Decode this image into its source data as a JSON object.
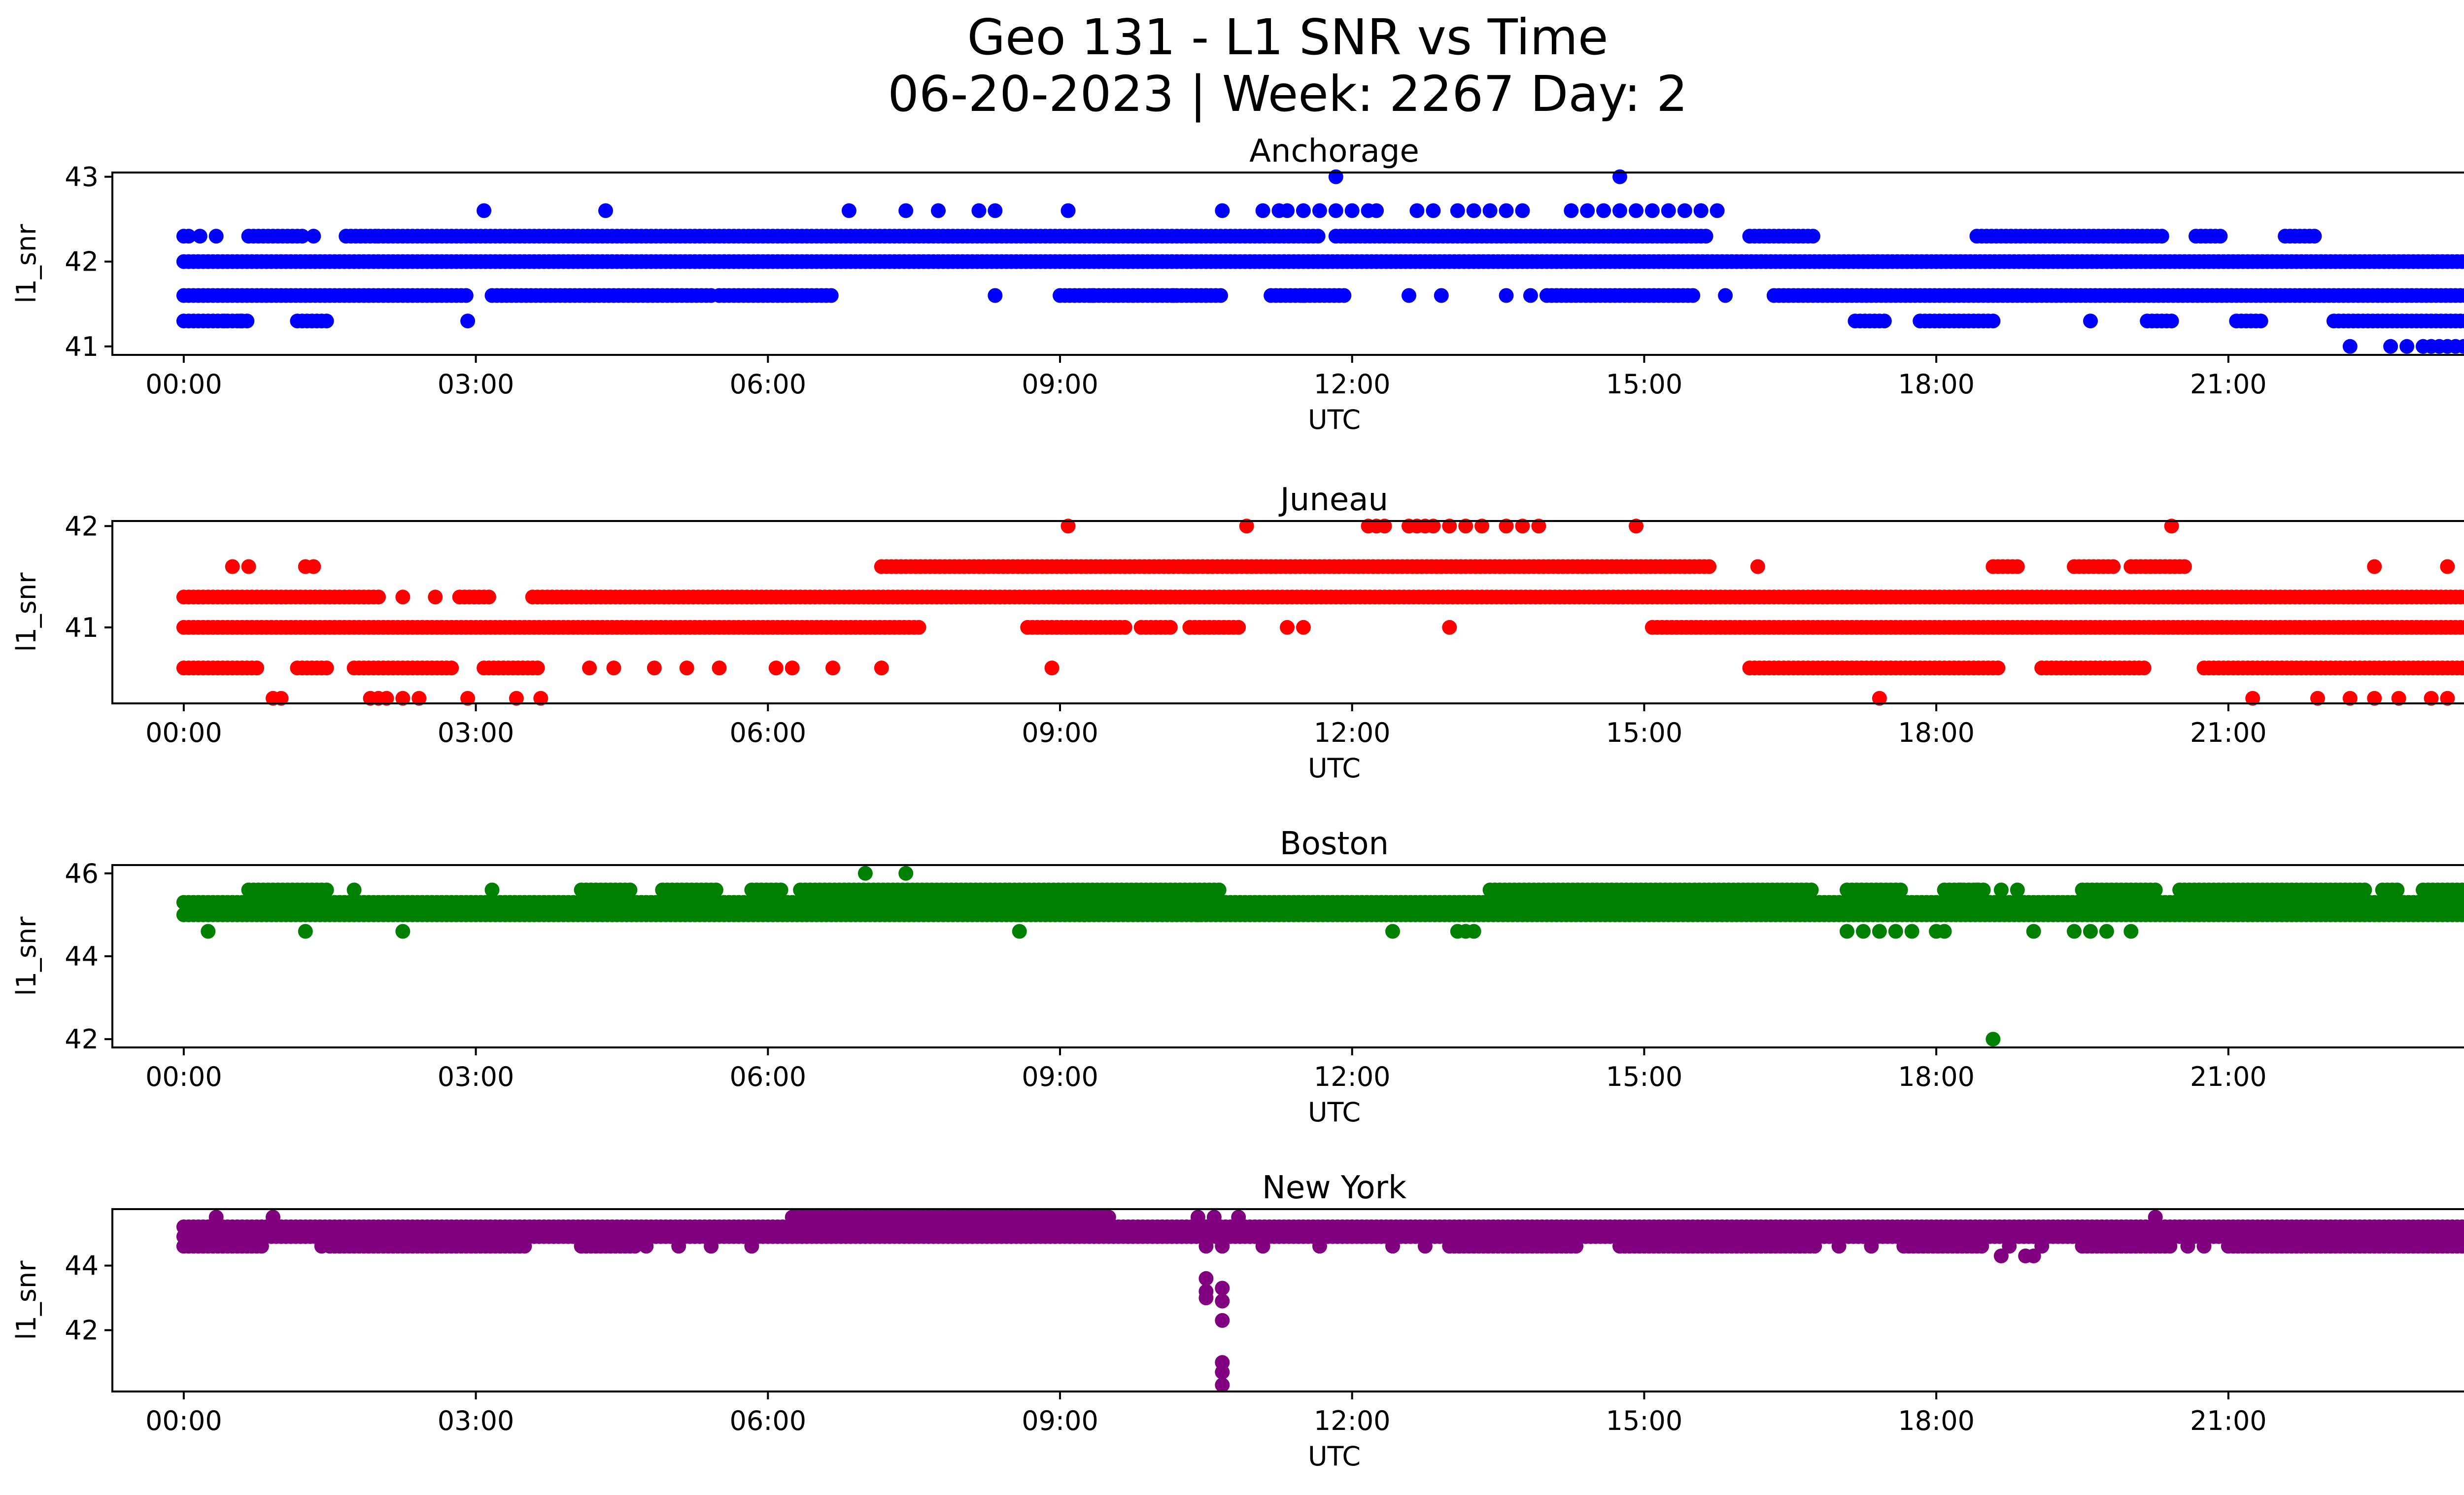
{
  "figure": {
    "title_line1": "Geo 131 - L1 SNR vs Time",
    "title_line2": "06-20-2023 | Week: 2267 Day: 2"
  },
  "chart_data": [
    {
      "type": "scatter",
      "title": "Anchorage",
      "xlabel": "UTC",
      "ylabel": "l1_snr",
      "color": "#0000ff",
      "xlim": [
        "23:16",
        "24:22"
      ],
      "ylim": [
        40.9,
        43.05
      ],
      "x_ticks": [
        "00:00",
        "03:00",
        "06:00",
        "09:00",
        "12:00",
        "15:00",
        "18:00",
        "21:00",
        "00:00"
      ],
      "y_ticks": [
        41,
        42,
        43
      ],
      "bands": [
        {
          "y": 41.6,
          "segments": [
            [
              "00:00",
              "02:55"
            ],
            [
              "03:10",
              "05:25"
            ],
            [
              "05:30",
              "06:40"
            ],
            [
              "09:00",
              "10:40"
            ],
            [
              "11:10",
              "11:55"
            ],
            [
              "14:00",
              "15:30"
            ],
            [
              "16:20",
              "24:00"
            ]
          ]
        },
        {
          "y": 42.0,
          "segments": [
            [
              "00:00",
              "24:00"
            ]
          ]
        },
        {
          "y": 42.3,
          "segments": [
            [
              "00:00",
              "00:05"
            ],
            [
              "00:40",
              "01:15"
            ],
            [
              "01:40",
              "02:00"
            ],
            [
              "02:00",
              "11:40"
            ],
            [
              "11:50",
              "15:40"
            ],
            [
              "16:05",
              "16:45"
            ],
            [
              "18:25",
              "20:20"
            ],
            [
              "20:40",
              "20:55"
            ],
            [
              "21:35",
              "21:55"
            ]
          ]
        },
        {
          "y": 41.3,
          "segments": [
            [
              "00:00",
              "00:40"
            ],
            [
              "01:10",
              "01:30"
            ],
            [
              "17:10",
              "17:30"
            ],
            [
              "17:50",
              "18:35"
            ],
            [
              "20:10",
              "20:25"
            ],
            [
              "21:05",
              "21:20"
            ],
            [
              "22:05",
              "24:00"
            ]
          ]
        }
      ],
      "points": [
        [
          "00:10",
          42.3
        ],
        [
          "00:20",
          42.3
        ],
        [
          "01:20",
          42.3
        ],
        [
          "02:55",
          41.3
        ],
        [
          "03:05",
          42.6
        ],
        [
          "04:20",
          42.6
        ],
        [
          "06:50",
          42.6
        ],
        [
          "07:25",
          42.6
        ],
        [
          "07:45",
          42.6
        ],
        [
          "08:10",
          42.6
        ],
        [
          "08:20",
          42.6
        ],
        [
          "09:05",
          42.6
        ],
        [
          "10:40",
          42.6
        ],
        [
          "11:05",
          42.6
        ],
        [
          "11:15",
          42.6
        ],
        [
          "11:20",
          42.6
        ],
        [
          "11:30",
          42.6
        ],
        [
          "11:40",
          42.6
        ],
        [
          "11:50",
          42.6
        ],
        [
          "12:00",
          42.6
        ],
        [
          "12:10",
          42.6
        ],
        [
          "12:15",
          42.6
        ],
        [
          "12:40",
          42.6
        ],
        [
          "12:50",
          42.6
        ],
        [
          "13:05",
          42.6
        ],
        [
          "13:15",
          42.6
        ],
        [
          "13:25",
          42.6
        ],
        [
          "13:35",
          42.6
        ],
        [
          "13:45",
          42.6
        ],
        [
          "14:15",
          42.6
        ],
        [
          "14:25",
          42.6
        ],
        [
          "14:35",
          42.6
        ],
        [
          "14:45",
          42.6
        ],
        [
          "14:55",
          42.6
        ],
        [
          "15:05",
          42.6
        ],
        [
          "15:15",
          42.6
        ],
        [
          "15:25",
          42.6
        ],
        [
          "15:35",
          42.6
        ],
        [
          "15:45",
          42.6
        ],
        [
          "11:50",
          43.0
        ],
        [
          "14:45",
          43.0
        ],
        [
          "08:20",
          41.6
        ],
        [
          "09:20",
          41.6
        ],
        [
          "09:45",
          41.6
        ],
        [
          "10:10",
          41.6
        ],
        [
          "10:30",
          41.6
        ],
        [
          "11:30",
          41.6
        ],
        [
          "12:35",
          41.6
        ],
        [
          "12:55",
          41.6
        ],
        [
          "13:35",
          41.6
        ],
        [
          "13:50",
          41.6
        ],
        [
          "15:50",
          41.6
        ],
        [
          "19:35",
          41.3
        ],
        [
          "23:30",
          42.3
        ],
        [
          "00:25",
          41.3
        ],
        [
          "00:35",
          41.3
        ],
        [
          "22:15",
          41.0
        ],
        [
          "22:40",
          41.0
        ],
        [
          "22:50",
          41.0
        ],
        [
          "23:00",
          41.0
        ],
        [
          "23:05",
          41.0
        ],
        [
          "23:10",
          41.0
        ],
        [
          "23:15",
          41.0
        ],
        [
          "23:20",
          41.0
        ],
        [
          "23:25",
          41.0
        ],
        [
          "24:00",
          41.0
        ],
        [
          "24:00",
          42.0
        ]
      ]
    },
    {
      "type": "scatter",
      "title": "Juneau",
      "xlabel": "UTC",
      "ylabel": "l1_snr",
      "color": "#ff0000",
      "xlim": [
        "23:16",
        "24:22"
      ],
      "ylim": [
        40.25,
        42.05
      ],
      "x_ticks": [
        "00:00",
        "03:00",
        "06:00",
        "09:00",
        "12:00",
        "15:00",
        "18:00",
        "21:00",
        "00:00"
      ],
      "y_ticks": [
        41,
        42
      ],
      "bands": [
        {
          "y": 41.0,
          "segments": [
            [
              "00:00",
              "07:35"
            ],
            [
              "08:40",
              "09:40"
            ],
            [
              "09:50",
              "10:10"
            ],
            [
              "10:20",
              "10:50"
            ],
            [
              "15:05",
              "24:00"
            ]
          ]
        },
        {
          "y": 41.3,
          "segments": [
            [
              "00:00",
              "02:00"
            ],
            [
              "02:50",
              "03:10"
            ],
            [
              "03:35",
              "24:00"
            ]
          ]
        },
        {
          "y": 40.6,
          "segments": [
            [
              "00:00",
              "00:45"
            ],
            [
              "01:10",
              "01:30"
            ],
            [
              "01:45",
              "02:45"
            ],
            [
              "03:05",
              "03:40"
            ],
            [
              "16:05",
              "18:40"
            ],
            [
              "19:05",
              "20:10"
            ],
            [
              "20:45",
              "24:00"
            ]
          ]
        },
        {
          "y": 41.6,
          "segments": [
            [
              "07:10",
              "15:40"
            ],
            [
              "18:35",
              "18:50"
            ],
            [
              "19:25",
              "19:50"
            ],
            [
              "20:00",
              "20:35"
            ]
          ]
        }
      ],
      "points": [
        [
          "00:30",
          41.6
        ],
        [
          "00:40",
          41.6
        ],
        [
          "01:15",
          41.6
        ],
        [
          "01:20",
          41.6
        ],
        [
          "00:55",
          40.3
        ],
        [
          "01:00",
          40.3
        ],
        [
          "01:55",
          40.3
        ],
        [
          "02:00",
          40.3
        ],
        [
          "02:05",
          40.3
        ],
        [
          "02:15",
          40.3
        ],
        [
          "02:25",
          40.3
        ],
        [
          "02:55",
          40.3
        ],
        [
          "03:25",
          40.3
        ],
        [
          "03:40",
          40.3
        ],
        [
          "17:25",
          40.3
        ],
        [
          "02:15",
          41.3
        ],
        [
          "02:35",
          41.3
        ],
        [
          "04:10",
          40.6
        ],
        [
          "04:25",
          40.6
        ],
        [
          "04:50",
          40.6
        ],
        [
          "05:10",
          40.6
        ],
        [
          "05:30",
          40.6
        ],
        [
          "06:05",
          40.6
        ],
        [
          "06:15",
          40.6
        ],
        [
          "06:40",
          40.6
        ],
        [
          "07:10",
          40.6
        ],
        [
          "08:55",
          40.6
        ],
        [
          "09:05",
          42.0
        ],
        [
          "10:55",
          42.0
        ],
        [
          "12:10",
          42.0
        ],
        [
          "12:15",
          42.0
        ],
        [
          "12:20",
          42.0
        ],
        [
          "12:35",
          42.0
        ],
        [
          "12:40",
          42.0
        ],
        [
          "12:45",
          42.0
        ],
        [
          "12:50",
          42.0
        ],
        [
          "13:00",
          42.0
        ],
        [
          "13:10",
          42.0
        ],
        [
          "13:20",
          42.0
        ],
        [
          "13:35",
          42.0
        ],
        [
          "13:45",
          42.0
        ],
        [
          "13:55",
          42.0
        ],
        [
          "14:55",
          42.0
        ],
        [
          "20:25",
          42.0
        ],
        [
          "11:20",
          41.0
        ],
        [
          "11:30",
          41.0
        ],
        [
          "13:00",
          41.0
        ],
        [
          "16:10",
          41.6
        ],
        [
          "22:30",
          41.6
        ],
        [
          "23:15",
          41.6
        ],
        [
          "21:15",
          40.3
        ],
        [
          "21:55",
          40.3
        ],
        [
          "22:15",
          40.3
        ],
        [
          "22:30",
          40.3
        ],
        [
          "22:45",
          40.3
        ],
        [
          "23:05",
          40.3
        ],
        [
          "23:15",
          40.3
        ],
        [
          "23:40",
          40.3
        ],
        [
          "23:45",
          40.3
        ]
      ]
    },
    {
      "type": "scatter",
      "title": "Boston",
      "xlabel": "UTC",
      "ylabel": "l1_snr",
      "color": "#008000",
      "xlim": [
        "23:16",
        "24:22"
      ],
      "ylim": [
        41.8,
        46.2
      ],
      "x_ticks": [
        "00:00",
        "03:00",
        "06:00",
        "09:00",
        "12:00",
        "15:00",
        "18:00",
        "21:00",
        "00:00"
      ],
      "y_ticks": [
        42,
        44,
        46
      ],
      "bands": [
        {
          "y": 45.0,
          "segments": [
            [
              "00:00",
              "24:00"
            ]
          ]
        },
        {
          "y": 45.3,
          "segments": [
            [
              "00:00",
              "24:00"
            ]
          ]
        },
        {
          "y": 45.6,
          "segments": [
            [
              "00:40",
              "01:30"
            ],
            [
              "04:05",
              "04:35"
            ],
            [
              "04:55",
              "05:30"
            ],
            [
              "05:50",
              "06:10"
            ],
            [
              "06:20",
              "10:40"
            ],
            [
              "13:25",
              "16:45"
            ],
            [
              "17:05",
              "17:40"
            ],
            [
              "18:05",
              "18:30"
            ],
            [
              "19:30",
              "20:15"
            ],
            [
              "20:30",
              "22:25"
            ],
            [
              "22:35",
              "22:45"
            ],
            [
              "23:00",
              "24:00"
            ]
          ]
        }
      ],
      "points": [
        [
          "00:15",
          44.6
        ],
        [
          "01:15",
          44.6
        ],
        [
          "02:15",
          44.6
        ],
        [
          "01:45",
          45.6
        ],
        [
          "03:10",
          45.6
        ],
        [
          "07:00",
          46.0
        ],
        [
          "07:25",
          46.0
        ],
        [
          "08:35",
          44.6
        ],
        [
          "08:35",
          45.0
        ],
        [
          "09:15",
          45.0
        ],
        [
          "10:25",
          45.0
        ],
        [
          "12:25",
          44.6
        ],
        [
          "13:05",
          44.6
        ],
        [
          "13:10",
          44.6
        ],
        [
          "13:15",
          44.6
        ],
        [
          "17:05",
          44.6
        ],
        [
          "17:15",
          44.6
        ],
        [
          "17:25",
          44.6
        ],
        [
          "17:35",
          44.6
        ],
        [
          "17:45",
          44.6
        ],
        [
          "18:00",
          44.6
        ],
        [
          "18:05",
          44.6
        ],
        [
          "18:35",
          42.0
        ],
        [
          "19:00",
          44.6
        ],
        [
          "19:25",
          44.6
        ],
        [
          "19:35",
          44.6
        ],
        [
          "19:45",
          44.6
        ],
        [
          "20:00",
          44.6
        ],
        [
          "18:40",
          45.6
        ],
        [
          "18:50",
          45.6
        ],
        [
          "18:15",
          45.6
        ],
        [
          "18:25",
          45.6
        ]
      ]
    },
    {
      "type": "scatter",
      "title": "New York",
      "xlabel": "UTC",
      "ylabel": "l1_snr",
      "color": "#800080",
      "xlim": [
        "23:16",
        "24:22"
      ],
      "ylim": [
        40.1,
        45.75
      ],
      "x_ticks": [
        "00:00",
        "03:00",
        "06:00",
        "09:00",
        "12:00",
        "15:00",
        "18:00",
        "21:00",
        "00:00"
      ],
      "y_ticks": [
        42,
        44
      ],
      "bands": [
        {
          "y": 45.2,
          "segments": [
            [
              "00:00",
              "24:00"
            ]
          ]
        },
        {
          "y": 44.9,
          "segments": [
            [
              "00:00",
              "24:00"
            ]
          ]
        },
        {
          "y": 44.6,
          "segments": [
            [
              "00:00",
              "00:50"
            ],
            [
              "01:30",
              "03:30"
            ],
            [
              "04:05",
              "04:40"
            ],
            [
              "13:00",
              "14:20"
            ],
            [
              "14:45",
              "16:45"
            ],
            [
              "17:40",
              "18:30"
            ],
            [
              "19:30",
              "20:25"
            ],
            [
              "21:00",
              "23:55"
            ]
          ]
        },
        {
          "y": 45.5,
          "segments": [
            [
              "06:15",
              "09:30"
            ]
          ]
        }
      ],
      "points": [
        [
          "00:20",
          45.5
        ],
        [
          "00:55",
          45.5
        ],
        [
          "01:25",
          44.6
        ],
        [
          "04:45",
          44.6
        ],
        [
          "05:05",
          44.6
        ],
        [
          "05:25",
          44.6
        ],
        [
          "05:50",
          44.6
        ],
        [
          "10:25",
          45.5
        ],
        [
          "10:35",
          45.5
        ],
        [
          "10:50",
          45.5
        ],
        [
          "10:30",
          44.6
        ],
        [
          "10:40",
          44.6
        ],
        [
          "10:30",
          43.6
        ],
        [
          "10:30",
          43.2
        ],
        [
          "10:30",
          43.0
        ],
        [
          "10:40",
          43.3
        ],
        [
          "10:40",
          42.9
        ],
        [
          "10:40",
          42.3
        ],
        [
          "10:40",
          41.0
        ],
        [
          "10:40",
          40.7
        ],
        [
          "10:40",
          40.3
        ],
        [
          "11:05",
          44.6
        ],
        [
          "11:40",
          44.6
        ],
        [
          "12:25",
          44.6
        ],
        [
          "12:45",
          44.6
        ],
        [
          "17:00",
          44.6
        ],
        [
          "17:20",
          44.6
        ],
        [
          "18:40",
          44.3
        ],
        [
          "18:45",
          44.6
        ],
        [
          "18:55",
          44.3
        ],
        [
          "19:00",
          44.3
        ],
        [
          "19:05",
          44.6
        ],
        [
          "20:15",
          45.5
        ],
        [
          "20:35",
          44.6
        ],
        [
          "20:45",
          44.6
        ],
        [
          "24:00",
          44.6
        ]
      ]
    }
  ]
}
